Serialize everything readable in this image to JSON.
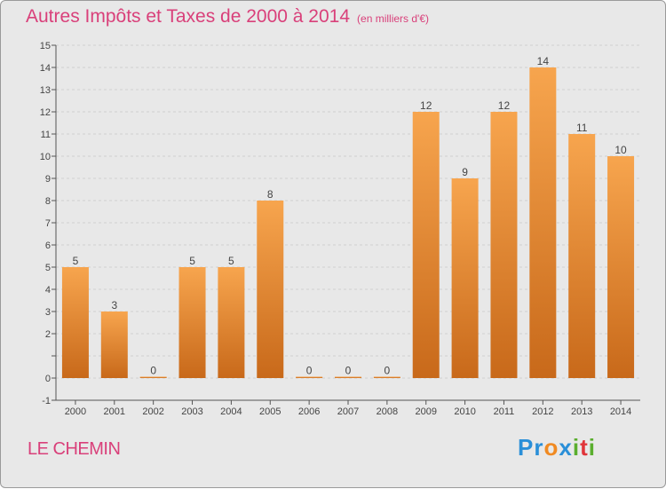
{
  "title": "Autres Impôts et Taxes de 2000 à 2014",
  "subtitle": "(en milliers d'€)",
  "commune": "LE CHEMIN",
  "logo": {
    "text": "Proxiti",
    "letters": [
      {
        "char": "P",
        "color": "#2a8fd8"
      },
      {
        "char": "r",
        "color": "#2a8fd8"
      },
      {
        "char": "o",
        "color": "#f08a22"
      },
      {
        "char": "x",
        "color": "#2a8fd8"
      },
      {
        "char": "i",
        "color": "#5aae2e"
      },
      {
        "char": "t",
        "color": "#e0353a"
      },
      {
        "char": "i",
        "color": "#5aae2e"
      }
    ]
  },
  "chart_data": {
    "type": "bar",
    "categories": [
      "2000",
      "2001",
      "2002",
      "2003",
      "2004",
      "2005",
      "2006",
      "2007",
      "2008",
      "2009",
      "2010",
      "2011",
      "2012",
      "2013",
      "2014"
    ],
    "values": [
      5,
      3,
      0,
      5,
      5,
      8,
      0,
      0,
      0,
      12,
      9,
      12,
      14,
      11,
      10
    ],
    "value_labels": [
      "5",
      "3",
      "0",
      "5",
      "5",
      "8",
      "0",
      "0",
      "0",
      "12",
      "9",
      "12",
      "14",
      "11",
      "10"
    ],
    "yticks": [
      -1,
      0,
      1,
      2,
      3,
      4,
      5,
      6,
      7,
      8,
      9,
      10,
      11,
      12,
      13,
      14,
      15
    ],
    "ytick_labels": [
      "-1",
      "0",
      "",
      "2",
      "3",
      "4",
      "5",
      "6",
      "7",
      "8",
      "9",
      "10",
      "11",
      "12",
      "13",
      "14",
      "15"
    ],
    "ylim": [
      -1,
      15
    ],
    "grid": true,
    "colors": {
      "bar_top": "#f7a54e",
      "bar_bottom": "#c8691a",
      "title": "#d9407a",
      "grid": "#cfcfcf",
      "plot_bg": "#e8e8e8"
    }
  }
}
